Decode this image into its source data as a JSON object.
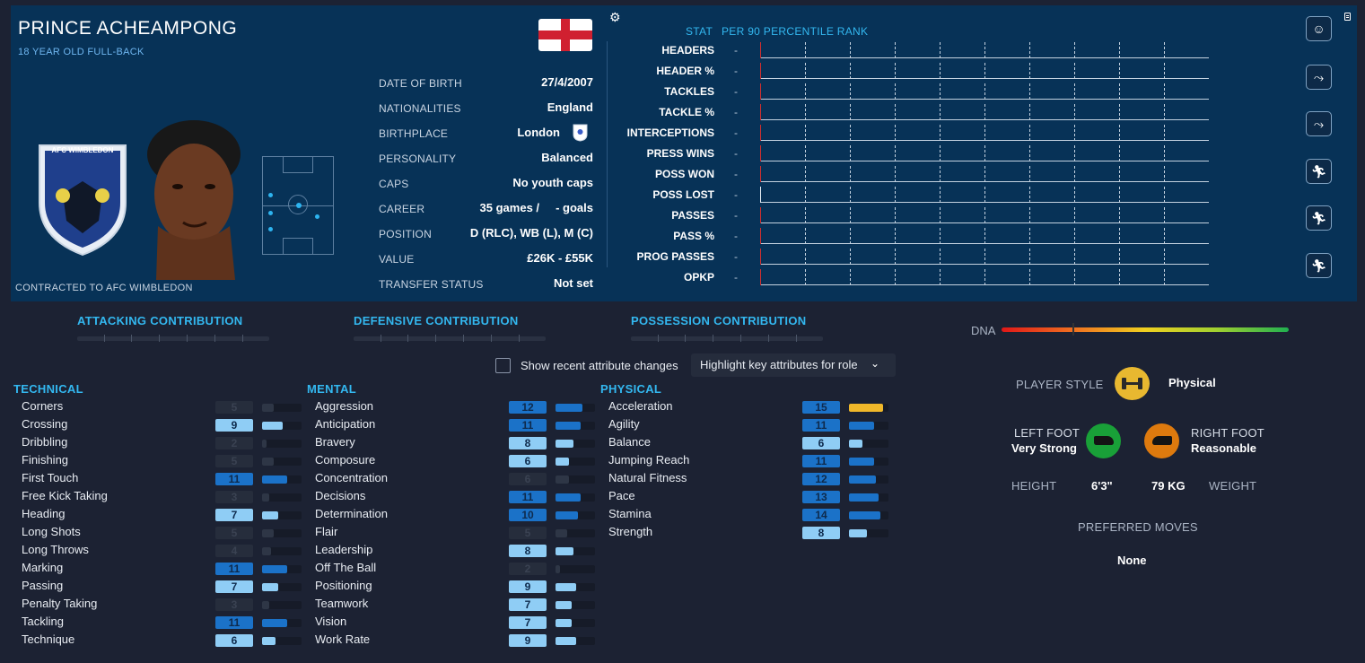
{
  "player": {
    "name": "PRINCE ACHEAMPONG",
    "subtitle": "18 YEAR OLD FULL-BACK",
    "contract": "CONTRACTED TO AFC WIMBLEDON",
    "club_badge_text": "AFC WIMBLEDON"
  },
  "info": [
    {
      "label": "DATE OF BIRTH",
      "value": "27/4/2007"
    },
    {
      "label": "NATIONALITIES",
      "value": "England"
    },
    {
      "label": "BIRTHPLACE",
      "value": "London"
    },
    {
      "label": "PERSONALITY",
      "value": "Balanced"
    },
    {
      "label": "CAPS",
      "value": "No youth caps"
    },
    {
      "label": "CAREER",
      "value": "35 games /     - goals"
    },
    {
      "label": "POSITION",
      "value": "D (RLC), WB (L), M (C)"
    },
    {
      "label": "VALUE",
      "value": "£26K - £55K"
    },
    {
      "label": "TRANSFER STATUS",
      "value": "Not set"
    }
  ],
  "stats": {
    "col_stat": "STAT",
    "col_rank": "PER 90 PERCENTILE RANK",
    "rows": [
      {
        "label": "HEADERS",
        "value": "-",
        "zero_color": "#d03030"
      },
      {
        "label": "HEADER %",
        "value": "-",
        "zero_color": "#d03030"
      },
      {
        "label": "TACKLES",
        "value": "-",
        "zero_color": "#d03030"
      },
      {
        "label": "TACKLE %",
        "value": "-",
        "zero_color": "#d03030"
      },
      {
        "label": "INTERCEPTIONS",
        "value": "-",
        "zero_color": "#d03030"
      },
      {
        "label": "PRESS WINS",
        "value": "-",
        "zero_color": "#d03030"
      },
      {
        "label": "POSS WON",
        "value": "-",
        "zero_color": "#d03030"
      },
      {
        "label": "POSS LOST",
        "value": "-",
        "zero_color": "#e8eef4"
      },
      {
        "label": "PASSES",
        "value": "-",
        "zero_color": "#d03030"
      },
      {
        "label": "PASS %",
        "value": "-",
        "zero_color": "#d03030"
      },
      {
        "label": "PROG PASSES",
        "value": "-",
        "zero_color": "#d03030"
      },
      {
        "label": "OPKP",
        "value": "-",
        "zero_color": "#d03030"
      }
    ]
  },
  "side_icons": [
    "player-profile-icon",
    "slide-tackle-icon",
    "slide-tackle-icon-2",
    "running-player-icon",
    "running-player-icon-2",
    "sprinting-player-icon"
  ],
  "contributions": {
    "attacking": "ATTACKING CONTRIBUTION",
    "defensive": "DEFENSIVE CONTRIBUTION",
    "possession": "POSSESSION CONTRIBUTION"
  },
  "dna": {
    "label": "DNA",
    "level": 0.25
  },
  "controls": {
    "show_changes_label": "Show recent attribute changes",
    "highlight_label": "Highlight key attributes for role"
  },
  "technical": {
    "title": "TECHNICAL",
    "attrs": [
      {
        "name": "Corners",
        "value": "5",
        "num": 5,
        "key": false
      },
      {
        "name": "Crossing",
        "value": "9",
        "num": 9,
        "key": true
      },
      {
        "name": "Dribbling",
        "value": "2",
        "num": 2,
        "key": false
      },
      {
        "name": "Finishing",
        "value": "5",
        "num": 5,
        "key": false
      },
      {
        "name": "First Touch",
        "value": "11",
        "num": 11,
        "key": true
      },
      {
        "name": "Free Kick Taking",
        "value": "3",
        "num": 3,
        "key": false
      },
      {
        "name": "Heading",
        "value": "7",
        "num": 7,
        "key": true
      },
      {
        "name": "Long Shots",
        "value": "5",
        "num": 5,
        "key": false
      },
      {
        "name": "Long Throws",
        "value": "4",
        "num": 4,
        "key": false
      },
      {
        "name": "Marking",
        "value": "11",
        "num": 11,
        "key": true
      },
      {
        "name": "Passing",
        "value": "7",
        "num": 7,
        "key": true
      },
      {
        "name": "Penalty Taking",
        "value": "3",
        "num": 3,
        "key": false
      },
      {
        "name": "Tackling",
        "value": "11",
        "num": 11,
        "key": true
      },
      {
        "name": "Technique",
        "value": "6",
        "num": 6,
        "key": true
      }
    ]
  },
  "mental": {
    "title": "MENTAL",
    "attrs": [
      {
        "name": "Aggression",
        "value": "12",
        "num": 12,
        "key": true
      },
      {
        "name": "Anticipation",
        "value": "11",
        "num": 11,
        "key": true
      },
      {
        "name": "Bravery",
        "value": "8",
        "num": 8,
        "key": true
      },
      {
        "name": "Composure",
        "value": "6",
        "num": 6,
        "key": true
      },
      {
        "name": "Concentration",
        "value": "6",
        "num": 6,
        "key": false
      },
      {
        "name": "Decisions",
        "value": "11",
        "num": 11,
        "key": true
      },
      {
        "name": "Determination",
        "value": "10",
        "num": 10,
        "key": true
      },
      {
        "name": "Flair",
        "value": "5",
        "num": 5,
        "key": false
      },
      {
        "name": "Leadership",
        "value": "8",
        "num": 8,
        "key": true
      },
      {
        "name": "Off The Ball",
        "value": "2",
        "num": 2,
        "key": false
      },
      {
        "name": "Positioning",
        "value": "9",
        "num": 9,
        "key": true
      },
      {
        "name": "Teamwork",
        "value": "7",
        "num": 7,
        "key": true
      },
      {
        "name": "Vision",
        "value": "7",
        "num": 7,
        "key": true
      },
      {
        "name": "Work Rate",
        "value": "9",
        "num": 9,
        "key": true
      }
    ]
  },
  "physical": {
    "title": "PHYSICAL",
    "attrs": [
      {
        "name": "Acceleration",
        "value": "15",
        "num": 15,
        "key": true
      },
      {
        "name": "Agility",
        "value": "11",
        "num": 11,
        "key": true
      },
      {
        "name": "Balance",
        "value": "6",
        "num": 6,
        "key": true
      },
      {
        "name": "Jumping Reach",
        "value": "11",
        "num": 11,
        "key": true
      },
      {
        "name": "Natural Fitness",
        "value": "12",
        "num": 12,
        "key": true
      },
      {
        "name": "Pace",
        "value": "13",
        "num": 13,
        "key": true
      },
      {
        "name": "Stamina",
        "value": "14",
        "num": 14,
        "key": true
      },
      {
        "name": "Strength",
        "value": "8",
        "num": 8,
        "key": true
      }
    ]
  },
  "profile": {
    "player_style_label": "PLAYER STYLE",
    "player_style_value": "Physical",
    "left_foot_label": "LEFT FOOT",
    "left_foot_value": "Very Strong",
    "right_foot_label": "RIGHT FOOT",
    "right_foot_value": "Reasonable",
    "height_label": "HEIGHT",
    "height_value": "6'3\"",
    "weight_value": "79 KG",
    "weight_label": "WEIGHT",
    "preferred_moves_label": "PREFERRED MOVES",
    "preferred_moves_value": "None"
  },
  "colors": {
    "header_bg": "#073257",
    "page_bg": "#1c2233",
    "accent": "#33b8f0",
    "attr_dark": "#1b72c8",
    "attr_light": "#8fcdf5",
    "attr_gold": "#f0b82a"
  }
}
